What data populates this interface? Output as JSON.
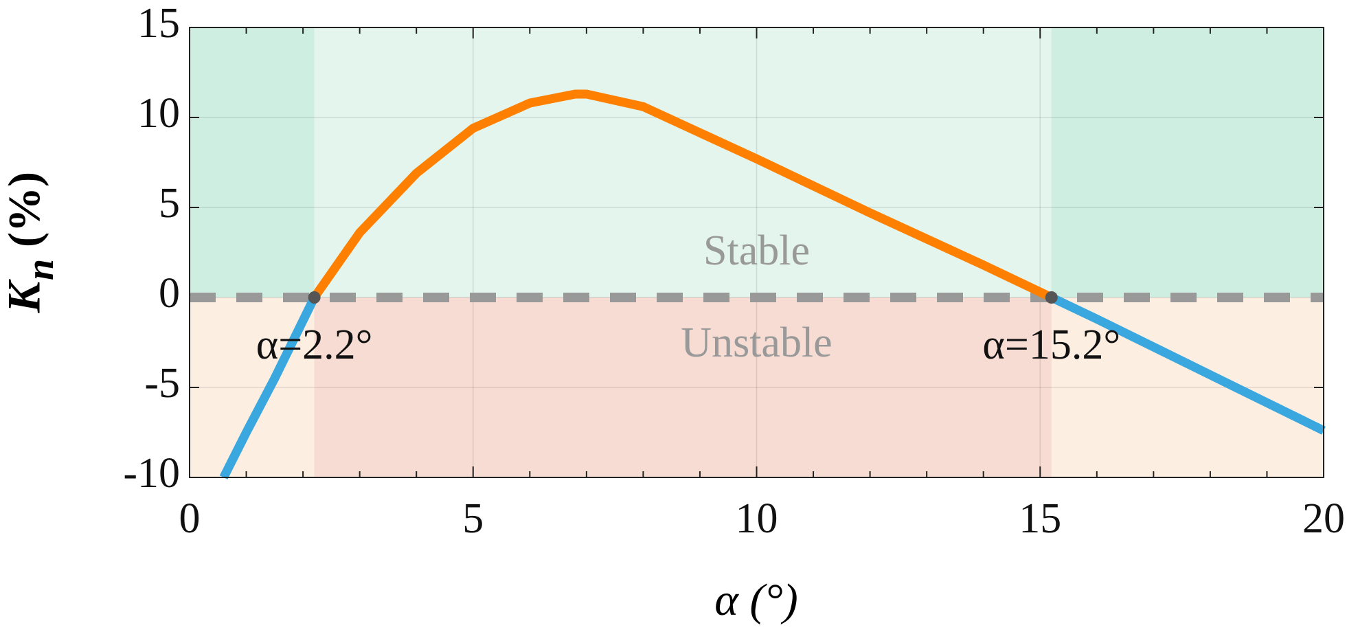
{
  "chart_data": {
    "type": "line",
    "xlabel": "α (°)",
    "ylabel": {
      "symbol": "K",
      "subscript": "n",
      "unit": "(%)"
    },
    "x": [
      0.6,
      1,
      1.5,
      2.2,
      3,
      4,
      5,
      6,
      6.8,
      7,
      8,
      10,
      12,
      14,
      15.2,
      16,
      18,
      20
    ],
    "series": [
      {
        "color": "#3aa8df",
        "values": [
          -10,
          -7.5,
          -4.5,
          0,
          null,
          null,
          null,
          null,
          null,
          null,
          null,
          null,
          null,
          null,
          0,
          -1.2,
          -4.3,
          -7.4
        ]
      },
      {
        "color": "#ff8000",
        "values": [
          null,
          null,
          null,
          0,
          3.6,
          6.9,
          9.4,
          10.8,
          11.3,
          11.3,
          10.6,
          7.7,
          4.7,
          1.8,
          0,
          null,
          null,
          null
        ]
      }
    ],
    "markers": [
      {
        "x": 2.2,
        "y": 0,
        "label": "α=2.2°"
      },
      {
        "x": 15.2,
        "y": 0,
        "label": "α=15.2°"
      }
    ],
    "hline": 0,
    "regions": {
      "above": "Stable",
      "below": "Unstable"
    },
    "xlim": [
      0,
      20
    ],
    "xticks": [
      0,
      5,
      10,
      15,
      20
    ],
    "xminorticks": [
      1,
      2,
      3,
      4,
      6,
      7,
      8,
      9,
      11,
      12,
      13,
      14,
      16,
      17,
      18,
      19
    ],
    "ylim": [
      -10,
      15
    ],
    "yticks": [
      -10,
      -5,
      0,
      5,
      10,
      15
    ],
    "grid": true
  }
}
